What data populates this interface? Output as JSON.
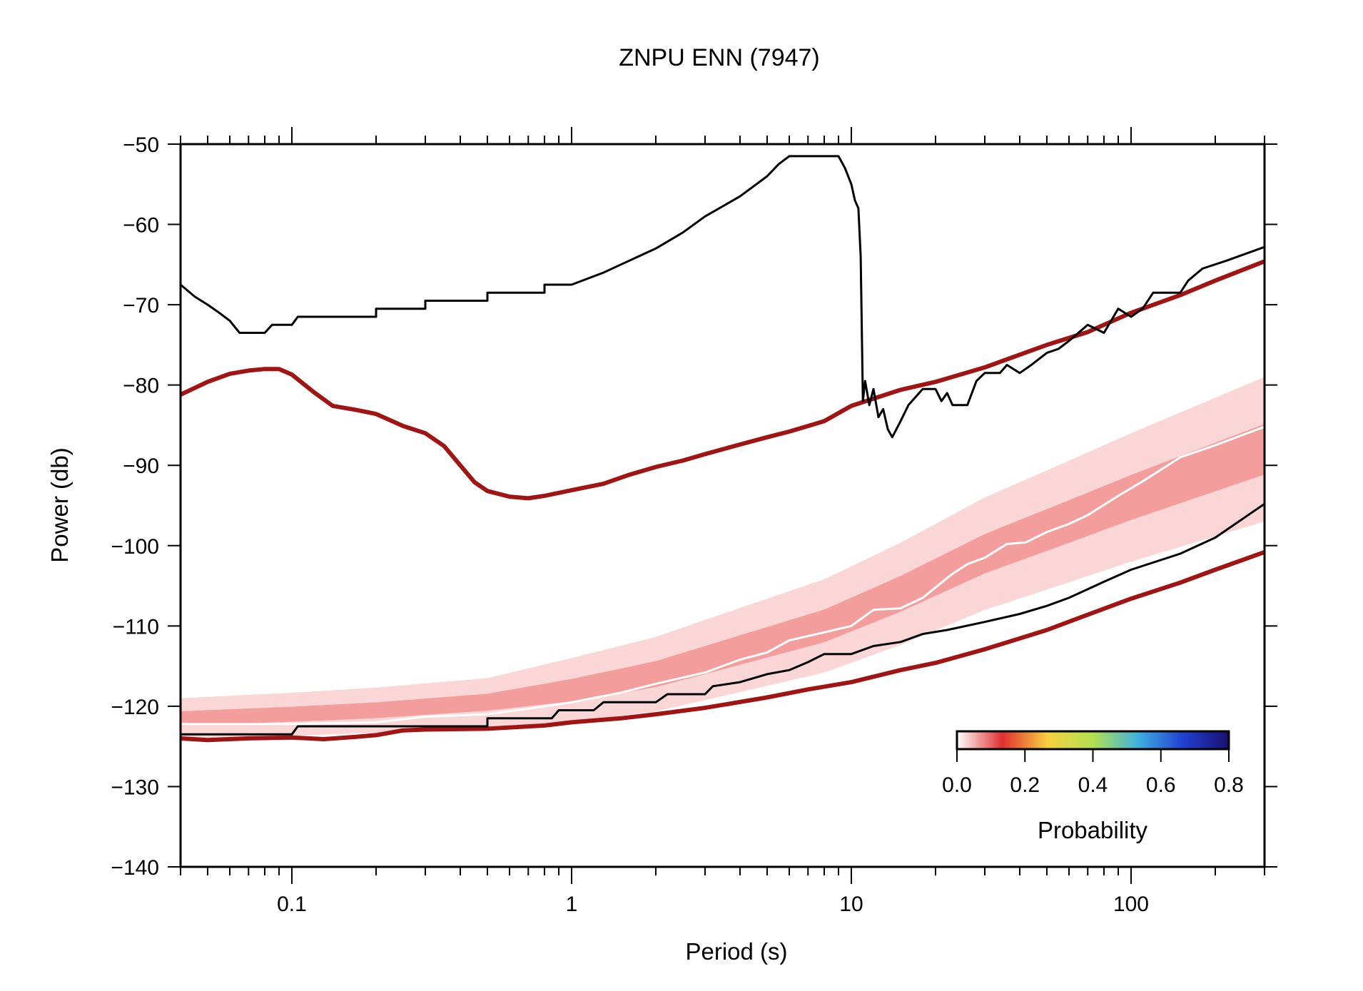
{
  "chart_data": {
    "type": "line",
    "title": "ZNPU ENN (7947)",
    "xlabel": "Period (s)",
    "ylabel": "Power (db)",
    "xscale": "log",
    "xlim": [
      0.04,
      300
    ],
    "ylim": [
      -140,
      -50
    ],
    "x_ticks": [
      0.1,
      1,
      10,
      100
    ],
    "x_tick_labels": [
      "0.1",
      "1",
      "10",
      "100"
    ],
    "y_ticks": [
      -50,
      -60,
      -70,
      -80,
      -90,
      -100,
      -110,
      -120,
      -130,
      -140
    ],
    "y_tick_labels": [
      "−50",
      "−60",
      "−70",
      "−80",
      "−90",
      "−100",
      "−110",
      "−120",
      "−130",
      "−140"
    ],
    "grid": false,
    "colors": {
      "noise_model": "#a01414",
      "envelope": "#000000",
      "mode": "#ffffff",
      "pdf_low": "#f9c8c8",
      "pdf_mid": "#e85858"
    },
    "series": [
      {
        "role": "new_high_noise_model",
        "points": [
          [
            0.04,
            -81.2
          ],
          [
            0.05,
            -79.6
          ],
          [
            0.06,
            -78.6
          ],
          [
            0.07,
            -78.2
          ],
          [
            0.08,
            -78.0
          ],
          [
            0.09,
            -78.0
          ],
          [
            0.1,
            -78.7
          ],
          [
            0.12,
            -80.9
          ],
          [
            0.14,
            -82.6
          ],
          [
            0.17,
            -83.1
          ],
          [
            0.2,
            -83.6
          ],
          [
            0.25,
            -85.1
          ],
          [
            0.3,
            -86.0
          ],
          [
            0.35,
            -87.6
          ],
          [
            0.4,
            -90.0
          ],
          [
            0.45,
            -92.1
          ],
          [
            0.5,
            -93.2
          ],
          [
            0.6,
            -93.9
          ],
          [
            0.7,
            -94.1
          ],
          [
            0.8,
            -93.8
          ],
          [
            1.0,
            -93.1
          ],
          [
            1.3,
            -92.3
          ],
          [
            1.6,
            -91.2
          ],
          [
            2.0,
            -90.2
          ],
          [
            2.5,
            -89.4
          ],
          [
            3.0,
            -88.6
          ],
          [
            4.0,
            -87.4
          ],
          [
            5.0,
            -86.5
          ],
          [
            6.0,
            -85.8
          ],
          [
            8.0,
            -84.5
          ],
          [
            10.0,
            -82.6
          ],
          [
            15.0,
            -80.6
          ],
          [
            20.0,
            -79.6
          ],
          [
            30.0,
            -77.8
          ],
          [
            50.0,
            -75.0
          ],
          [
            70.0,
            -73.4
          ],
          [
            100.0,
            -71.0
          ],
          [
            150.0,
            -68.8
          ],
          [
            200.0,
            -67.0
          ],
          [
            300.0,
            -64.6
          ]
        ]
      },
      {
        "role": "new_low_noise_model",
        "points": [
          [
            0.04,
            -124.0
          ],
          [
            0.05,
            -124.2
          ],
          [
            0.07,
            -124.0
          ],
          [
            0.1,
            -123.9
          ],
          [
            0.13,
            -124.1
          ],
          [
            0.17,
            -123.8
          ],
          [
            0.2,
            -123.6
          ],
          [
            0.25,
            -123.0
          ],
          [
            0.3,
            -122.9
          ],
          [
            0.5,
            -122.8
          ],
          [
            0.8,
            -122.4
          ],
          [
            1.0,
            -122.0
          ],
          [
            1.5,
            -121.5
          ],
          [
            2.0,
            -121.0
          ],
          [
            3.0,
            -120.2
          ],
          [
            5.0,
            -118.9
          ],
          [
            7.0,
            -117.9
          ],
          [
            10.0,
            -117.0
          ],
          [
            15.0,
            -115.5
          ],
          [
            20.0,
            -114.6
          ],
          [
            30.0,
            -112.9
          ],
          [
            50.0,
            -110.5
          ],
          [
            70.0,
            -108.6
          ],
          [
            100.0,
            -106.6
          ],
          [
            150.0,
            -104.6
          ],
          [
            200.0,
            -103.0
          ],
          [
            300.0,
            -100.8
          ]
        ]
      },
      {
        "role": "max_envelope",
        "points": [
          [
            0.04,
            -67.5
          ],
          [
            0.045,
            -69.0
          ],
          [
            0.05,
            -70.0
          ],
          [
            0.055,
            -71.0
          ],
          [
            0.06,
            -72.0
          ],
          [
            0.065,
            -73.5
          ],
          [
            0.08,
            -73.5
          ],
          [
            0.085,
            -72.5
          ],
          [
            0.1,
            -72.5
          ],
          [
            0.105,
            -71.5
          ],
          [
            0.2,
            -71.5
          ],
          [
            0.2,
            -70.5
          ],
          [
            0.3,
            -70.5
          ],
          [
            0.3,
            -69.5
          ],
          [
            0.5,
            -69.5
          ],
          [
            0.5,
            -68.5
          ],
          [
            0.8,
            -68.5
          ],
          [
            0.8,
            -67.5
          ],
          [
            1.0,
            -67.5
          ],
          [
            1.3,
            -66.0
          ],
          [
            1.5,
            -65.0
          ],
          [
            2.0,
            -63.0
          ],
          [
            2.5,
            -61.0
          ],
          [
            3.0,
            -59.0
          ],
          [
            4.0,
            -56.5
          ],
          [
            5.0,
            -54.0
          ],
          [
            5.5,
            -52.5
          ],
          [
            6.0,
            -51.5
          ],
          [
            7.0,
            -51.5
          ],
          [
            8.0,
            -51.5
          ],
          [
            9.0,
            -51.5
          ],
          [
            9.5,
            -53.0
          ],
          [
            10.0,
            -55.0
          ],
          [
            10.3,
            -57.0
          ],
          [
            10.6,
            -58.0
          ],
          [
            10.8,
            -64.0
          ],
          [
            11.0,
            -82.0
          ],
          [
            11.2,
            -79.5
          ],
          [
            11.6,
            -82.5
          ],
          [
            12.0,
            -80.5
          ],
          [
            12.5,
            -84.0
          ],
          [
            13.0,
            -83.0
          ],
          [
            13.5,
            -85.5
          ],
          [
            14.0,
            -86.5
          ],
          [
            15.0,
            -84.5
          ],
          [
            16.0,
            -82.5
          ],
          [
            18.0,
            -80.5
          ],
          [
            20.0,
            -80.5
          ],
          [
            21.0,
            -82.0
          ],
          [
            22.0,
            -81.0
          ],
          [
            23.0,
            -82.5
          ],
          [
            26.0,
            -82.5
          ],
          [
            28.0,
            -79.5
          ],
          [
            30.0,
            -78.5
          ],
          [
            34.0,
            -78.5
          ],
          [
            36.0,
            -77.5
          ],
          [
            40.0,
            -78.5
          ],
          [
            44.0,
            -77.5
          ],
          [
            50.0,
            -76.0
          ],
          [
            55.0,
            -75.5
          ],
          [
            60.0,
            -74.5
          ],
          [
            70.0,
            -72.5
          ],
          [
            80.0,
            -73.5
          ],
          [
            90.0,
            -70.5
          ],
          [
            100.0,
            -71.5
          ],
          [
            110.0,
            -70.5
          ],
          [
            120.0,
            -68.5
          ],
          [
            150.0,
            -68.5
          ],
          [
            160.0,
            -67.0
          ],
          [
            180.0,
            -65.5
          ],
          [
            220.0,
            -64.5
          ],
          [
            300.0,
            -62.8
          ]
        ]
      },
      {
        "role": "min_envelope",
        "points": [
          [
            0.04,
            -123.5
          ],
          [
            0.1,
            -123.5
          ],
          [
            0.105,
            -122.5
          ],
          [
            0.5,
            -122.5
          ],
          [
            0.5,
            -121.5
          ],
          [
            0.85,
            -121.5
          ],
          [
            0.9,
            -120.5
          ],
          [
            1.2,
            -120.5
          ],
          [
            1.3,
            -119.5
          ],
          [
            2.0,
            -119.5
          ],
          [
            2.2,
            -118.5
          ],
          [
            3.0,
            -118.5
          ],
          [
            3.2,
            -117.5
          ],
          [
            4.0,
            -117.0
          ],
          [
            5.0,
            -116.0
          ],
          [
            6.0,
            -115.5
          ],
          [
            7.0,
            -114.5
          ],
          [
            8.0,
            -113.5
          ],
          [
            10.0,
            -113.5
          ],
          [
            12.0,
            -112.5
          ],
          [
            15.0,
            -112.0
          ],
          [
            18.0,
            -111.0
          ],
          [
            22.0,
            -110.5
          ],
          [
            30.0,
            -109.5
          ],
          [
            40.0,
            -108.5
          ],
          [
            50.0,
            -107.5
          ],
          [
            60.0,
            -106.5
          ],
          [
            80.0,
            -104.5
          ],
          [
            100.0,
            -103.0
          ],
          [
            150.0,
            -101.0
          ],
          [
            200.0,
            -99.0
          ],
          [
            300.0,
            -94.8
          ]
        ]
      },
      {
        "role": "mode",
        "points": [
          [
            0.04,
            -122.2
          ],
          [
            0.1,
            -122.2
          ],
          [
            0.2,
            -122.0
          ],
          [
            0.3,
            -121.3
          ],
          [
            0.5,
            -121.0
          ],
          [
            0.7,
            -120.3
          ],
          [
            1.0,
            -119.5
          ],
          [
            1.5,
            -118.3
          ],
          [
            2.0,
            -117.2
          ],
          [
            3.0,
            -115.8
          ],
          [
            4.0,
            -114.2
          ],
          [
            5.0,
            -113.3
          ],
          [
            6.0,
            -111.8
          ],
          [
            8.0,
            -110.8
          ],
          [
            10.0,
            -110.0
          ],
          [
            12.0,
            -108.0
          ],
          [
            15.0,
            -107.8
          ],
          [
            18.0,
            -106.5
          ],
          [
            20.0,
            -105.2
          ],
          [
            23.0,
            -103.5
          ],
          [
            26.0,
            -102.3
          ],
          [
            30.0,
            -101.5
          ],
          [
            36.0,
            -99.8
          ],
          [
            42.0,
            -99.6
          ],
          [
            50.0,
            -98.3
          ],
          [
            60.0,
            -97.3
          ],
          [
            70.0,
            -96.2
          ],
          [
            90.0,
            -93.8
          ],
          [
            110.0,
            -92.0
          ],
          [
            150.0,
            -89.0
          ],
          [
            200.0,
            -87.5
          ],
          [
            300.0,
            -85.2
          ]
        ]
      }
    ],
    "pdf_band": {
      "center": [
        [
          0.04,
          -121.5
        ],
        [
          0.1,
          -121.0
        ],
        [
          0.2,
          -120.5
        ],
        [
          0.5,
          -119.5
        ],
        [
          1.0,
          -118.0
        ],
        [
          2.0,
          -116.0
        ],
        [
          4.0,
          -113.0
        ],
        [
          8.0,
          -110.0
        ],
        [
          15.0,
          -106.0
        ],
        [
          30.0,
          -101.0
        ],
        [
          60.0,
          -97.0
        ],
        [
          100.0,
          -94.0
        ],
        [
          300.0,
          -88.0
        ]
      ],
      "halfwidth": [
        [
          0.04,
          2.5
        ],
        [
          0.5,
          3.0
        ],
        [
          1.0,
          4.0
        ],
        [
          3.0,
          5.0
        ],
        [
          10.0,
          6.0
        ],
        [
          30.0,
          7.0
        ],
        [
          100.0,
          8.0
        ],
        [
          300.0,
          9.0
        ]
      ]
    },
    "colorbar": {
      "label": "Probability",
      "range": [
        0.0,
        0.8
      ],
      "tick_labels": [
        "0.0",
        "0.2",
        "0.4",
        "0.6",
        "0.8"
      ],
      "stops": [
        "#ffffff",
        "#e03030",
        "#f8d040",
        "#b0e050",
        "#40b0e0",
        "#2040d0",
        "#1a1070"
      ]
    }
  }
}
